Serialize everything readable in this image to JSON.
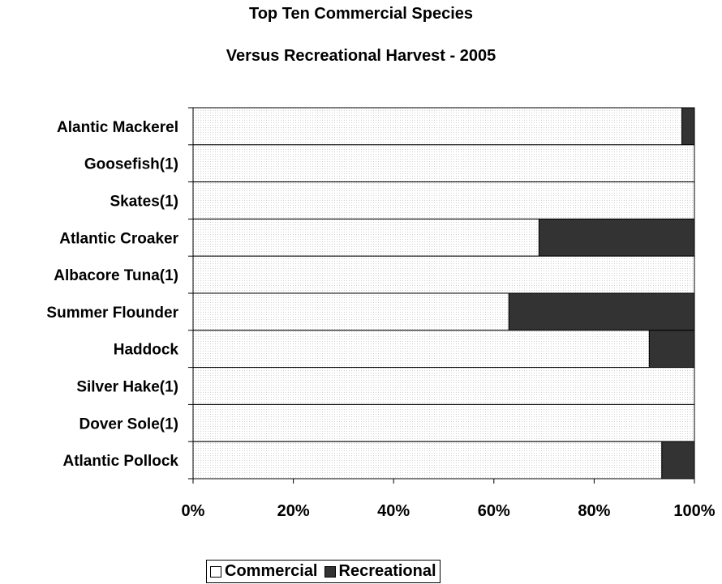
{
  "chart_data": {
    "type": "bar",
    "orientation": "horizontal",
    "stacked": "percent",
    "title": "Top Ten Commercial Species",
    "subtitle": "Versus Recreational Harvest - 2005",
    "categories": [
      "Alantic Mackerel",
      "Goosefish(1)",
      "Skates(1)",
      "Atlantic Croaker",
      "Albacore Tuna(1)",
      "Summer Flounder",
      "Haddock",
      "Silver Hake(1)",
      "Dover Sole(1)",
      "Atlantic Pollock"
    ],
    "series": [
      {
        "name": "Commercial",
        "color": "#ffffff",
        "values": [
          97.5,
          100,
          100,
          69,
          100,
          63,
          91,
          100,
          100,
          93.5
        ]
      },
      {
        "name": "Recreational",
        "color": "#333333",
        "values": [
          2.5,
          0,
          0,
          31,
          0,
          37,
          9,
          0,
          0,
          6.5
        ]
      }
    ],
    "xlim": [
      0,
      100
    ],
    "xticks": [
      "0%",
      "20%",
      "40%",
      "60%",
      "80%",
      "100%"
    ],
    "grid": false,
    "legend_position": "bottom"
  }
}
